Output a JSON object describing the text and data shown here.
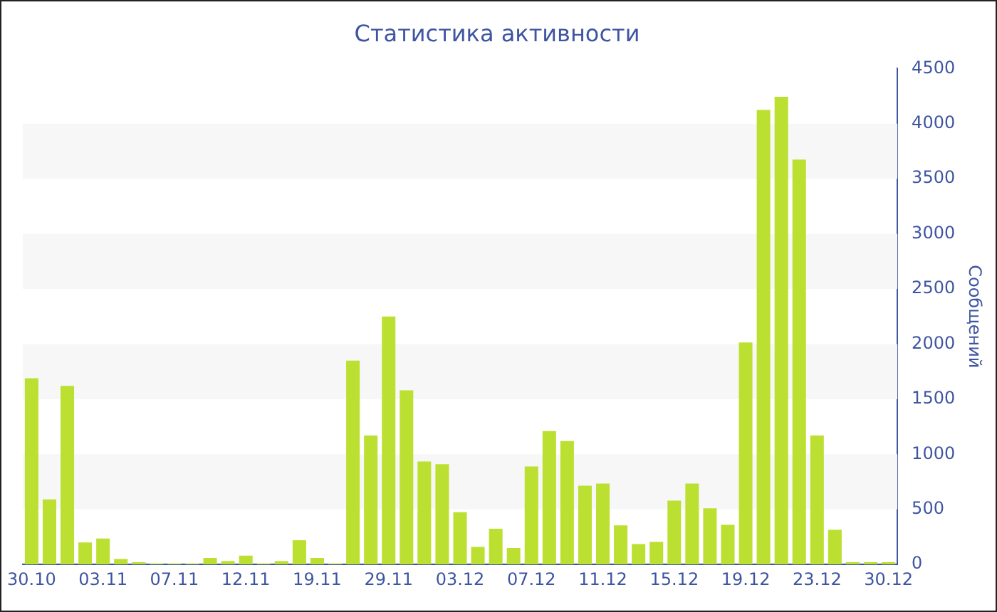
{
  "chart_data": {
    "type": "bar",
    "title": "Статистика активности",
    "ylabel": "Сообщений",
    "categories": [
      "30.10",
      null,
      null,
      null,
      "03.11",
      null,
      null,
      null,
      "07.11",
      null,
      null,
      null,
      "12.11",
      null,
      null,
      null,
      "19.11",
      null,
      null,
      null,
      "29.11",
      null,
      null,
      null,
      "03.12",
      null,
      null,
      null,
      "07.12",
      null,
      null,
      null,
      "11.12",
      null,
      null,
      null,
      "15.12",
      null,
      null,
      null,
      "19.12",
      null,
      null,
      null,
      "23.12",
      null,
      null,
      null,
      "30.12"
    ],
    "values": [
      1690,
      590,
      1620,
      200,
      235,
      50,
      20,
      10,
      10,
      10,
      60,
      30,
      80,
      10,
      30,
      220,
      60,
      10,
      1850,
      1170,
      2250,
      1580,
      935,
      910,
      475,
      160,
      325,
      150,
      890,
      1210,
      1120,
      715,
      735,
      355,
      185,
      205,
      580,
      735,
      510,
      360,
      2015,
      4125,
      4245,
      3675,
      1170,
      315,
      20,
      20,
      20
    ],
    "color": "#bce031",
    "ylim": [
      0,
      4500
    ],
    "yticks": [
      0,
      500,
      1000,
      1500,
      2000,
      2500,
      3000,
      3500,
      4000,
      4500
    ],
    "bands": [
      {
        "axis": "y",
        "from": 500,
        "to": 1000,
        "color": "#f7f7f7"
      },
      {
        "axis": "y",
        "from": 1500,
        "to": 2000,
        "color": "#f7f7f7"
      },
      {
        "axis": "y",
        "from": 2500,
        "to": 3000,
        "color": "#f7f7f7"
      },
      {
        "axis": "y",
        "from": 3500,
        "to": 4000,
        "color": "#f7f7f7"
      }
    ]
  }
}
